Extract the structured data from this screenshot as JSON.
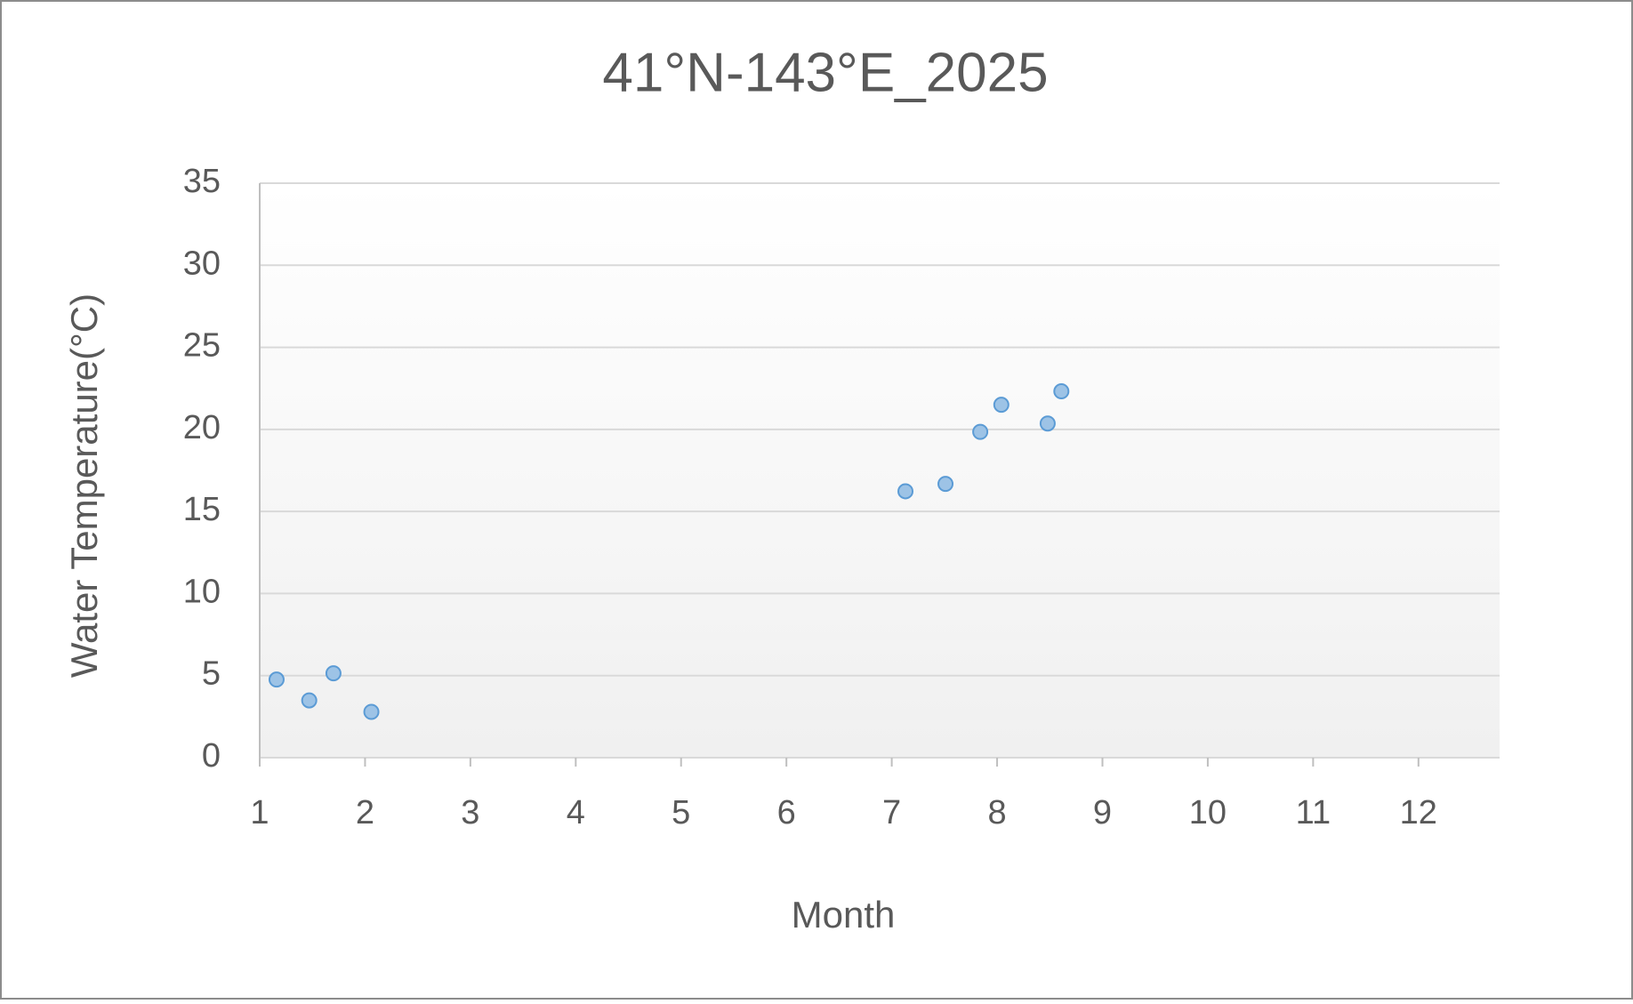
{
  "chart_data": {
    "type": "scatter",
    "title": "41°N-143°E_2025",
    "x_label": "Month",
    "y_label": "Water Temperature(°C)",
    "x": [
      1.16,
      1.47,
      1.7,
      2.06,
      7.13,
      7.51,
      7.84,
      8.04,
      8.48,
      8.61
    ],
    "values": [
      4.76,
      3.49,
      5.14,
      2.79,
      16.23,
      16.68,
      19.85,
      21.5,
      20.36,
      22.32
    ],
    "color": "#9dc3e6",
    "edge_color": "#5b9bd5",
    "xlim": [
      1,
      12.77
    ],
    "xticks": [
      1,
      2,
      3,
      4,
      5,
      6,
      7,
      8,
      9,
      10,
      11,
      12
    ],
    "ylim": [
      0,
      35
    ],
    "yticks": [
      0,
      5,
      10,
      15,
      20,
      25,
      30,
      35
    ],
    "grid": true
  }
}
